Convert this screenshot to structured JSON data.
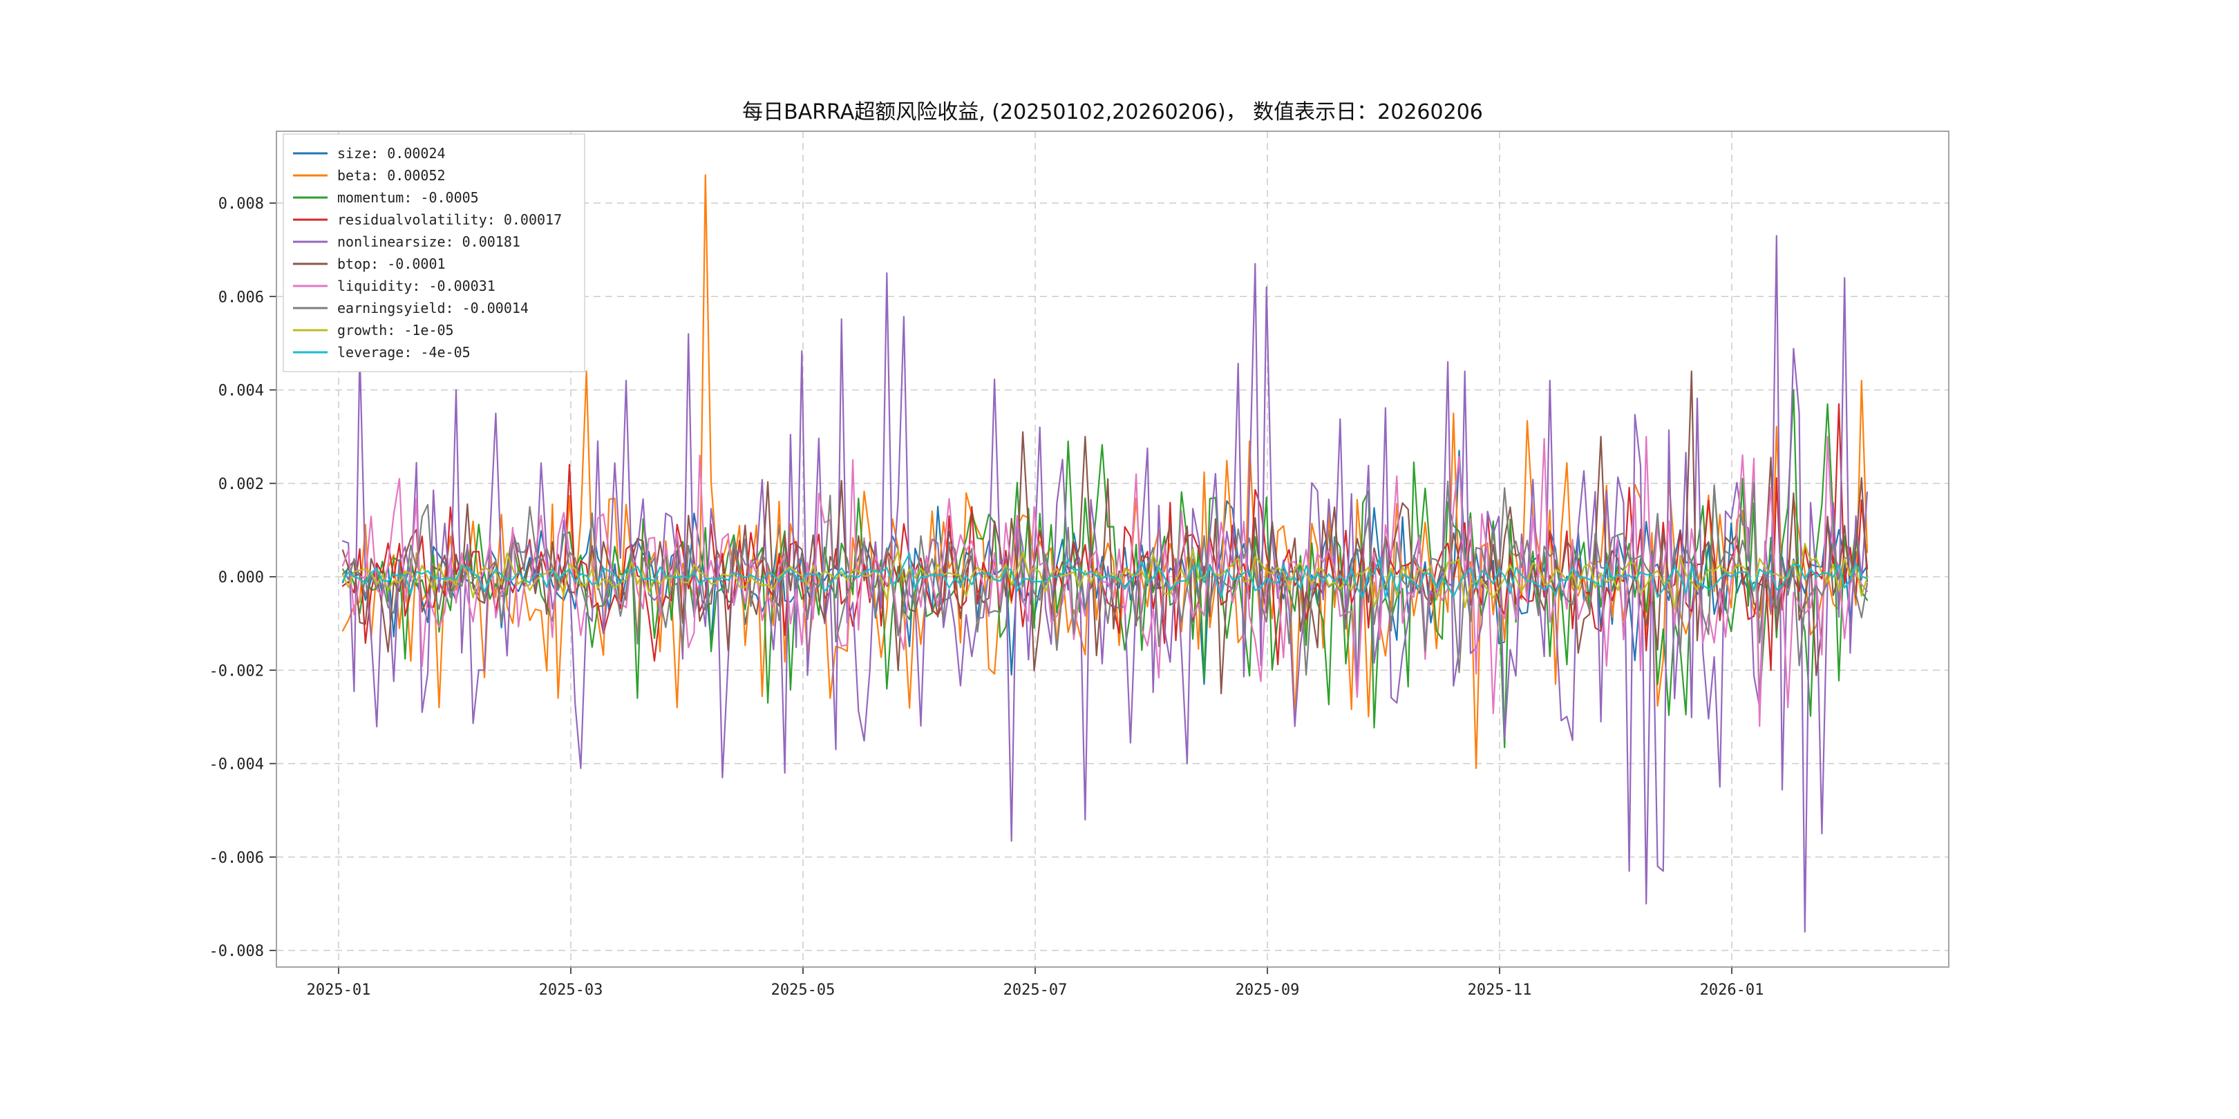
{
  "title": "每日BARRA超额风险收益, (20250102,20260206)，  数值表示日：20260206",
  "chart_data": {
    "type": "line",
    "title": "每日BARRA超额风险收益, (20250102,20260206)，  数值表示日：20260206",
    "x_range": [
      "2025-01-02",
      "2026-02-06"
    ],
    "value_date": "20260206",
    "n_points": 270,
    "grid": "dashed",
    "legend_position": "upper-left",
    "x_tick_labels": [
      "2025-01",
      "2025-03",
      "2025-05",
      "2025-07",
      "2025-09",
      "2025-11",
      "2026-01"
    ],
    "x_tick_months": [
      0,
      2,
      4,
      6,
      8,
      10,
      12
    ],
    "y_tick_values": [
      0.008,
      0.006,
      0.004,
      0.002,
      0.0,
      -0.002,
      -0.004,
      -0.006,
      -0.008
    ],
    "ylim": [
      -0.0089,
      0.0089
    ],
    "seed": 20260206,
    "series": [
      {
        "name": "size",
        "value": 0.00024,
        "value_label": "0.00024",
        "color": "#1f77b4",
        "sigma": 0.00042,
        "late": 0.5,
        "spikes": {
          "44": 0.0012,
          "118": -0.0021,
          "152": -0.0023,
          "197": 0.0027
        }
      },
      {
        "name": "beta",
        "value": 0.00052,
        "value_label": "0.00052",
        "color": "#ff7f0e",
        "sigma": 0.00085,
        "late": 0.4,
        "spikes": {
          "17": -0.0028,
          "38": -0.0026,
          "43": 0.0044,
          "59": -0.0028,
          "64": 0.0086,
          "86": -0.0026,
          "160": 0.0029,
          "196": 0.0035,
          "200": -0.0041,
          "214": -0.0023,
          "268": 0.0042
        }
      },
      {
        "name": "momentum",
        "value": -0.0005,
        "value_label": "-0.0005",
        "color": "#2ca02c",
        "sigma": 0.00055,
        "late": 1.6,
        "spikes": {
          "52": -0.0026,
          "75": -0.0027,
          "96": -0.0024,
          "247": 0.0021,
          "250": -0.0027,
          "256": 0.004,
          "262": 0.0037
        }
      },
      {
        "name": "residualvolatility",
        "value": 0.00017,
        "value_label": "0.00017",
        "color": "#d62728",
        "sigma": 0.00048,
        "late": 0.5,
        "spikes": {
          "40": 0.0024,
          "55": -0.0018,
          "111": 0.0015,
          "252": -0.002,
          "264": 0.0037
        }
      },
      {
        "name": "nonlinearsize",
        "value": 0.00181,
        "value_label": "0.00181",
        "color": "#9467bd",
        "sigma": 0.0017,
        "late": 0.25,
        "spikes": {
          "3": 0.0048,
          "14": -0.0029,
          "20": 0.004,
          "27": 0.0035,
          "42": -0.0041,
          "50": 0.0042,
          "61": 0.0052,
          "67": -0.0043,
          "78": -0.0042,
          "96": 0.0065,
          "123": 0.0032,
          "149": -0.004,
          "161": 0.0067,
          "163": 0.0062,
          "168": -0.0032,
          "186": -0.0027,
          "195": 0.0046,
          "198": 0.0044,
          "217": -0.0035,
          "227": -0.0063,
          "230": -0.007,
          "233": -0.0063,
          "243": -0.0045,
          "253": 0.0073,
          "258": -0.0076,
          "261": -0.0055,
          "265": 0.0064
        }
      },
      {
        "name": "btop",
        "value": -0.0001,
        "value_label": "-0.0001",
        "color": "#8c564b",
        "sigma": 0.00058,
        "late": 0.6,
        "spikes": {
          "120": 0.0031,
          "131": 0.003,
          "155": -0.0025,
          "222": 0.003,
          "238": 0.0044
        }
      },
      {
        "name": "liquidity",
        "value": -0.00031,
        "value_label": "-0.00031",
        "color": "#e377c2",
        "sigma": 0.00075,
        "late": 0.4,
        "spikes": {
          "10": 0.0021,
          "63": 0.0026,
          "90": 0.0025,
          "140": 0.0022,
          "230": 0.003,
          "250": -0.0032,
          "255": -0.0028,
          "262": 0.003
        }
      },
      {
        "name": "earningsyield",
        "value": -0.00014,
        "value_label": "-0.00014",
        "color": "#7f7f7f",
        "sigma": 0.0005,
        "late": 0.5,
        "spikes": {
          "33": 0.0015,
          "170": -0.0021,
          "205": 0.0019,
          "257": -0.0019
        }
      },
      {
        "name": "growth",
        "value": -1e-05,
        "value_label": "-1e-05",
        "color": "#bcbd22",
        "sigma": 0.00016,
        "late": 0.5,
        "spikes": {
          "150": 0.0006
        }
      },
      {
        "name": "leverage",
        "value": -4e-05,
        "value_label": "-4e-05",
        "color": "#17becf",
        "sigma": 0.00012,
        "late": 0.4,
        "spikes": {
          "100": 0.0005
        }
      }
    ]
  }
}
